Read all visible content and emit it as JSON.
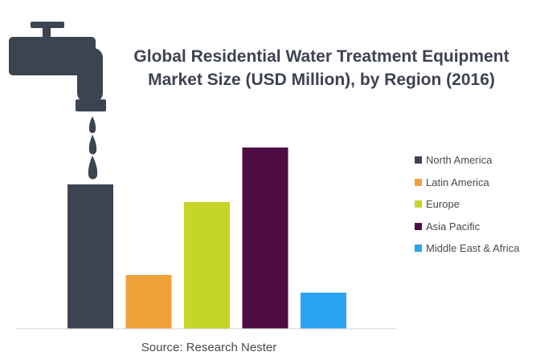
{
  "chart_data": {
    "type": "bar",
    "title_lines": [
      "Global Residential Water Treatment Equipment",
      "Market Size (USD Million), by Region (2016)"
    ],
    "categories": [
      "North America",
      "Latin America",
      "Europe",
      "Asia Pacific",
      "Middle East & Africa"
    ],
    "values": [
      180,
      67,
      158,
      226,
      45
    ],
    "colors": [
      "#3c4452",
      "#f0a13a",
      "#c5d52a",
      "#4e0b43",
      "#2aa3f2"
    ],
    "ylim": [
      0,
      250
    ],
    "grid": false,
    "legend_position": "right",
    "source": "Source: Research Nester",
    "decoration": "water-tap-icon"
  }
}
